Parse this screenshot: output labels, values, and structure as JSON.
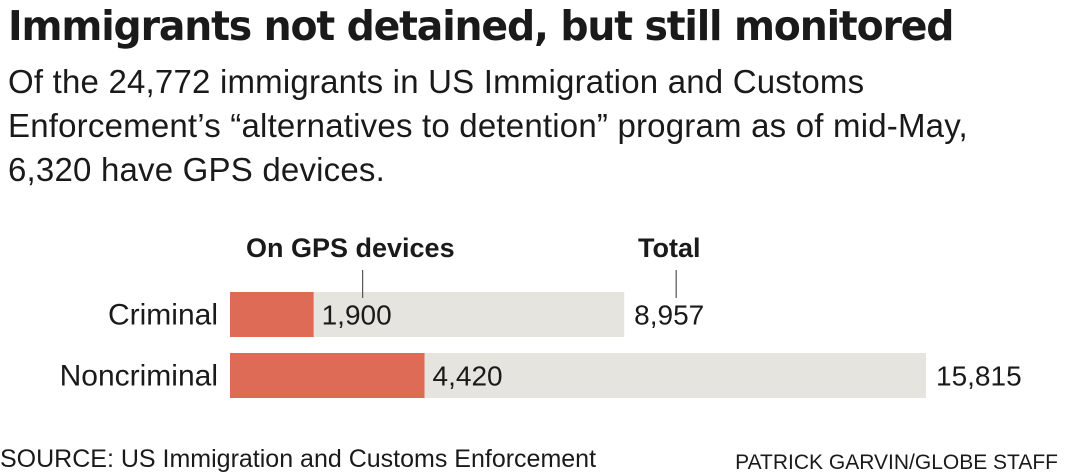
{
  "header": {
    "title": "Immigrants not detained, but still monitored",
    "subtitle": "Of the 24,772 immigrants in US Immigration and Customs Enforcement’s “alternatives to detention” program as of mid-May, 6,320 have GPS devices."
  },
  "chart_data": {
    "type": "bar",
    "orientation": "horizontal",
    "stacked": false,
    "categories": [
      "Criminal",
      "Noncriminal"
    ],
    "series": [
      {
        "name": "On GPS devices",
        "values": [
          1900,
          4420
        ],
        "labels": [
          "1,900",
          "4,420"
        ],
        "color": "#dd6b55"
      },
      {
        "name": "Total",
        "values": [
          8957,
          15815
        ],
        "labels": [
          "8,957",
          "15,815"
        ],
        "color": "#e6e4de"
      }
    ],
    "title": "",
    "xlabel": "",
    "ylabel": "",
    "xlim": [
      0,
      15815
    ],
    "grid": false,
    "legend": "top"
  },
  "footer": {
    "source": "SOURCE: US Immigration and Customs Enforcement",
    "credit": "PATRICK GARVIN/GLOBE STAFF"
  }
}
